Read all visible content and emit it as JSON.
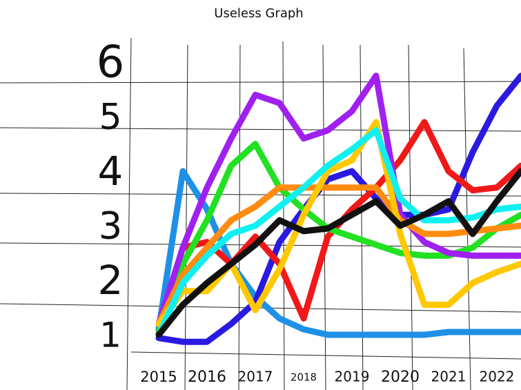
{
  "chart_data": {
    "type": "line",
    "title": "Useless Graph",
    "x": [
      2015,
      2015.5,
      2016,
      2016.5,
      2017,
      2017.5,
      2018,
      2018.5,
      2019,
      2019.5,
      2020,
      2020.5,
      2021,
      2021.5,
      2022,
      2022.5
    ],
    "xlim": [
      2014.5,
      2022.5
    ],
    "xticks": [
      2015,
      2016,
      2017,
      2018,
      2019,
      2020,
      2021,
      2022
    ],
    "ylim": [
      0.43,
      7.14
    ],
    "yticks": [
      1,
      2,
      3,
      4,
      5,
      6
    ],
    "series": [
      {
        "color": "#1e90e6",
        "values": [
          1.1,
          4.0,
          3.3,
          2.3,
          1.7,
          1.3,
          1.1,
          1.0,
          1.0,
          1.0,
          1.0,
          1.0,
          1.05,
          1.05,
          1.05,
          1.05
        ]
      },
      {
        "color": "#2a1ae0",
        "values": [
          0.94,
          0.87,
          0.87,
          1.2,
          1.6,
          2.7,
          3.3,
          3.85,
          4.0,
          3.5,
          3.2,
          3.2,
          3.3,
          4.35,
          5.2,
          5.75
        ]
      },
      {
        "color": "#f01818",
        "values": [
          1.06,
          2.6,
          2.7,
          2.3,
          2.8,
          2.3,
          1.3,
          2.8,
          3.3,
          3.7,
          4.2,
          4.9,
          4.0,
          3.65,
          3.7,
          4.1
        ]
      },
      {
        "color": "#22e022",
        "values": [
          1.06,
          2.3,
          3.1,
          4.1,
          4.5,
          3.7,
          3.3,
          2.95,
          2.8,
          2.65,
          2.5,
          2.45,
          2.45,
          2.6,
          2.95,
          3.2
        ]
      },
      {
        "color": "#a020f0",
        "values": [
          1.2,
          2.6,
          3.7,
          4.6,
          5.4,
          5.25,
          4.6,
          4.75,
          5.1,
          5.75,
          3.2,
          2.7,
          2.5,
          2.45,
          2.45,
          2.45
        ]
      },
      {
        "color": "#ff8c10",
        "values": [
          1.2,
          2.1,
          2.6,
          3.1,
          3.35,
          3.7,
          3.7,
          3.7,
          3.7,
          3.7,
          3.1,
          2.85,
          2.85,
          2.9,
          2.95,
          3.0
        ]
      },
      {
        "color": "#ffc800",
        "values": [
          1.2,
          1.8,
          1.8,
          2.3,
          1.45,
          2.2,
          3.2,
          4.0,
          4.2,
          4.9,
          2.85,
          1.55,
          1.55,
          1.95,
          2.15,
          2.3
        ]
      },
      {
        "color": "#10f0f0",
        "values": [
          1.0,
          1.95,
          2.45,
          2.85,
          3.0,
          3.35,
          3.7,
          4.1,
          4.4,
          4.75,
          3.5,
          3.1,
          3.1,
          3.15,
          3.3,
          3.35
        ]
      },
      {
        "color": "#111111",
        "values": [
          1.0,
          1.55,
          1.95,
          2.3,
          2.65,
          3.1,
          2.9,
          2.95,
          3.2,
          3.45,
          3.0,
          3.2,
          3.45,
          2.85,
          3.45,
          4.0
        ]
      }
    ]
  }
}
